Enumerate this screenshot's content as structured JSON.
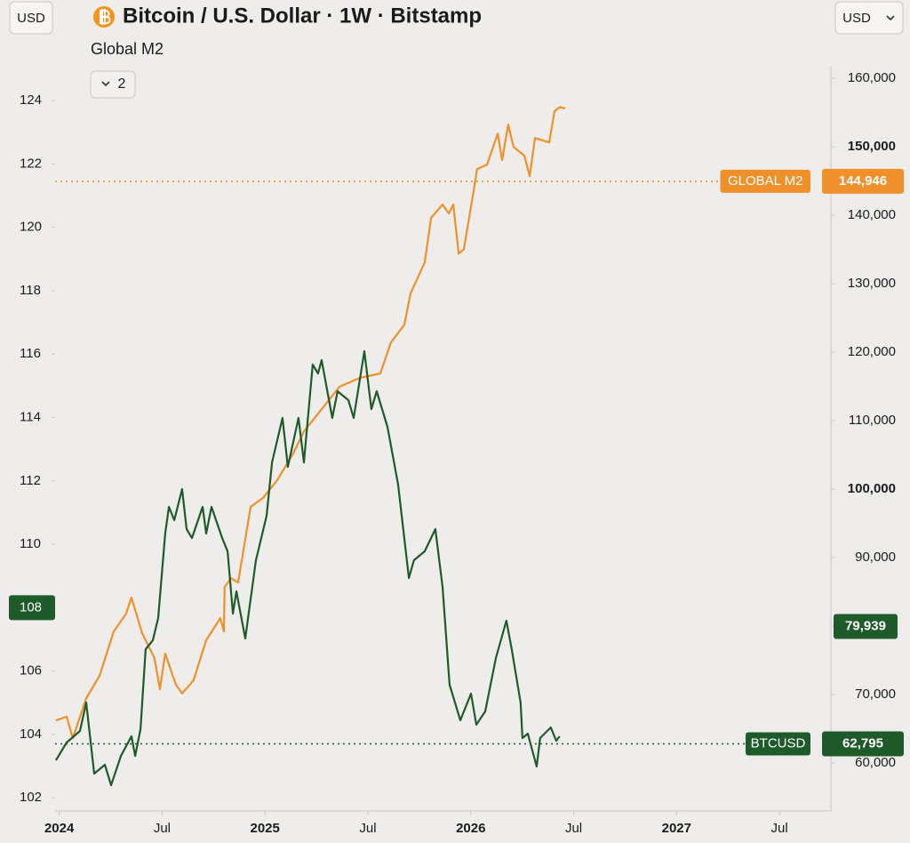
{
  "ui": {
    "currency_left": "USD",
    "currency_right": "USD",
    "collapsed_count": 2
  },
  "chart_data": {
    "type": "line",
    "title": "Bitcoin / U.S. Dollar · 1W · Bitstamp",
    "xlim": [
      2023.98,
      2027.75
    ],
    "xticks": [
      2024,
      {
        "value": 2024.5,
        "label": "Jul"
      },
      2025,
      {
        "value": 2025.5,
        "label": "Jul"
      },
      2026,
      {
        "value": 2026.5,
        "label": "Jul"
      },
      2027,
      {
        "value": 2027.5,
        "label": "Jul"
      }
    ],
    "ylim": [
      101.64,
      125.07
    ],
    "yticks": [
      102,
      104,
      106,
      108,
      110,
      112,
      114,
      116,
      118,
      120,
      122,
      124
    ],
    "y2lim": [
      53250,
      161690
    ],
    "y2ticks": [
      {
        "value": 60000,
        "label": "60,000"
      },
      {
        "value": 70000,
        "label": "70,000"
      },
      {
        "value": 80000,
        "label": "80,000"
      },
      {
        "value": 90000,
        "label": "90,000"
      },
      {
        "value": 100000,
        "label": "100,000"
      },
      {
        "value": 110000,
        "label": "110,000"
      },
      {
        "value": 120000,
        "label": "120,000"
      },
      {
        "value": 130000,
        "label": "130,000"
      },
      {
        "value": 140000,
        "label": "140,000"
      },
      {
        "value": 150000,
        "label": "150,000"
      },
      {
        "value": 160000,
        "label": "160,000"
      }
    ],
    "series": [
      {
        "name": "Global M2",
        "color": "#f0902a",
        "axis": "y",
        "x": [
          2023.984,
          2024.036,
          2024.066,
          2024.131,
          2024.196,
          2024.265,
          2024.325,
          2024.351,
          2024.403,
          2024.463,
          2024.489,
          2024.515,
          2024.567,
          2024.597,
          2024.653,
          2024.714,
          2024.783,
          2024.8,
          2024.804,
          2024.835,
          2024.869,
          2024.93,
          2024.99,
          2025.059,
          2025.137,
          2025.189,
          2025.275,
          2025.362,
          2025.461,
          2025.56,
          2025.612,
          2025.677,
          2025.707,
          2025.776,
          2025.807,
          2025.863,
          2025.893,
          2025.915,
          2025.941,
          2025.966,
          2026.01,
          2026.031,
          2026.079,
          2026.131,
          2026.152,
          2026.182,
          2026.208,
          2026.26,
          2026.286,
          2026.312,
          2026.381,
          2026.407,
          2026.433,
          2026.459
        ],
        "values": [
          104.44,
          104.56,
          103.88,
          105.14,
          105.85,
          107.25,
          107.81,
          108.32,
          107.19,
          106.41,
          105.43,
          106.55,
          105.57,
          105.29,
          105.71,
          106.97,
          107.67,
          107.25,
          108.65,
          108.93,
          108.79,
          111.18,
          111.46,
          112.02,
          112.86,
          113.56,
          114.26,
          114.97,
          115.25,
          115.39,
          116.37,
          116.93,
          117.91,
          118.89,
          120.3,
          120.72,
          120.44,
          120.72,
          119.17,
          119.31,
          121.0,
          121.84,
          121.98,
          122.96,
          122.12,
          123.24,
          122.54,
          122.26,
          121.62,
          122.82,
          122.68,
          123.66,
          123.8,
          123.75
        ]
      },
      {
        "name": "BTCUSD",
        "color": "#1f5a2a",
        "axis": "y2",
        "x": [
          2023.984,
          2024.036,
          2024.101,
          2024.131,
          2024.17,
          2024.222,
          2024.252,
          2024.3,
          2024.351,
          2024.369,
          2024.395,
          2024.42,
          2024.455,
          2024.481,
          2024.515,
          2024.533,
          2024.559,
          2024.597,
          2024.619,
          2024.645,
          2024.697,
          2024.714,
          2024.74,
          2024.792,
          2024.818,
          2024.844,
          2024.861,
          2024.904,
          2024.956,
          2025.008,
          2025.034,
          2025.085,
          2025.111,
          2025.163,
          2025.189,
          2025.232,
          2025.258,
          2025.275,
          2025.327,
          2025.353,
          2025.405,
          2025.431,
          2025.483,
          2025.517,
          2025.543,
          2025.595,
          2025.647,
          2025.699,
          2025.724,
          2025.776,
          2025.828,
          2025.863,
          2025.897,
          2025.949,
          2026.001,
          2026.027,
          2026.07,
          2026.122,
          2026.173,
          2026.199,
          2026.242,
          2026.251,
          2026.277,
          2026.32,
          2026.337,
          2026.389,
          2026.415,
          2026.432
        ],
        "values": [
          60390,
          62987,
          64675,
          68831,
          58442,
          59740,
          56753,
          61039,
          63896,
          61039,
          64935,
          76623,
          77922,
          81169,
          93507,
          97403,
          95455,
          100000,
          94156,
          92857,
          97403,
          93507,
          97403,
          92857,
          90909,
          81818,
          85065,
          78182,
          89610,
          96104,
          103896,
          110390,
          103247,
          110390,
          103896,
          118182,
          116883,
          118831,
          110390,
          114286,
          112987,
          110390,
          120130,
          111688,
          114286,
          109091,
          100649,
          87013,
          89610,
          90909,
          94156,
          85714,
          71429,
          66234,
          70130,
          65584,
          67533,
          75325,
          80779,
          76623,
          68831,
          63636,
          64286,
          59481,
          63636,
          65195,
          63247,
          63896
        ]
      }
    ],
    "price_labels": [
      {
        "name": "GLOBAL M2",
        "value": 144946,
        "label": "144,946",
        "axis": "y2",
        "color": "#f0902a"
      },
      {
        "name": "BTCUSD",
        "value": 62795,
        "label": "62,795",
        "axis": "y2",
        "color": "#1f5a2a"
      }
    ],
    "crosshair": {
      "y": 108,
      "y2": {
        "value": 79939,
        "label": "79,939"
      },
      "color": "#1f5a2a"
    }
  }
}
